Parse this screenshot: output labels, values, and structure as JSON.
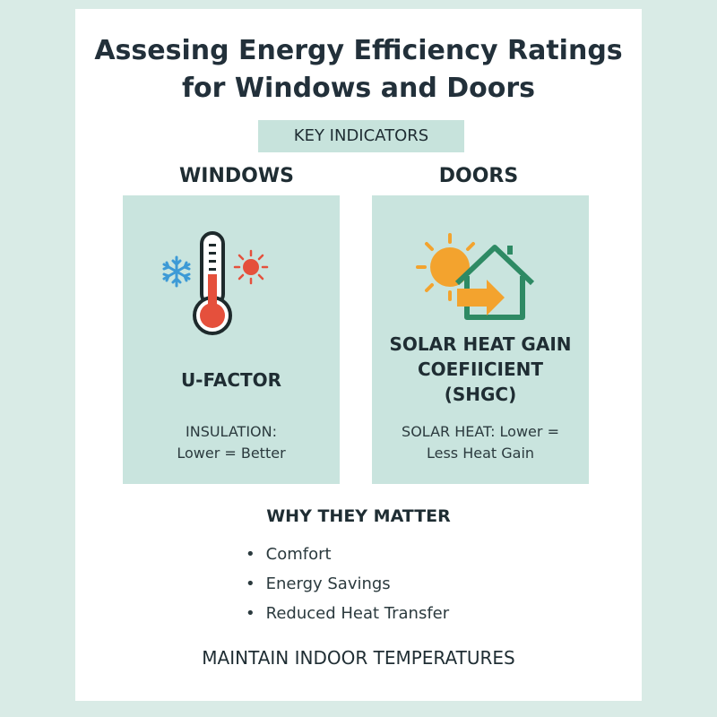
{
  "title_line1": "Assesing Energy Efficiency Ratings",
  "title_line2": "for Windows and Doors",
  "key_indicators": "KEY INDICATORS",
  "columns": {
    "windows": {
      "heading": "WINDOWS",
      "icon": "thermometer-icon",
      "metric": "U-FACTOR",
      "desc_line1": "INSULATION:",
      "desc_line2": "Lower = Better"
    },
    "doors": {
      "heading": "DOORS",
      "icon": "sun-house-icon",
      "metric_line1": "SOLAR HEAT GAIN",
      "metric_line2": "COEFIICIENT",
      "metric_line3": "(SHGC)",
      "desc_line1": "SOLAR HEAT: Lower =",
      "desc_line2": "Less Heat Gain"
    }
  },
  "why": {
    "heading": "WHY THEY MATTER",
    "items": [
      "Comfort",
      "Energy Savings",
      "Reduced Heat Transfer"
    ]
  },
  "footer": "MAINTAIN INDOOR TEMPERATURES",
  "colors": {
    "background": "#d9ebe6",
    "panel": "#c9e4de",
    "key_box": "#c7e3dc",
    "snow_blue": "#3d9ad6",
    "thermo_red": "#e5503c",
    "sun_orange": "#f3a32e",
    "house_green": "#2e8a64"
  }
}
